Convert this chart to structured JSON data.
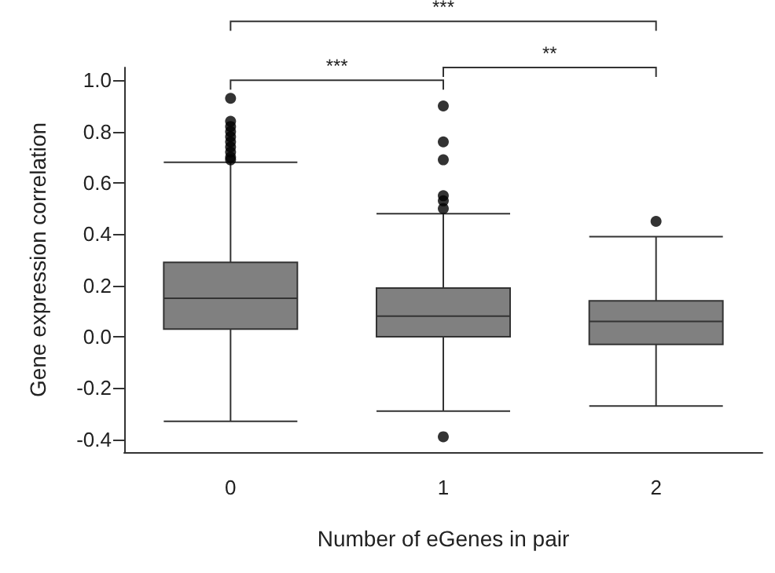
{
  "chart_data": {
    "type": "box",
    "xlabel": "Number of eGenes in pair",
    "ylabel": "Gene expression correlation",
    "categories": [
      "0",
      "1",
      "2"
    ],
    "boxes": [
      {
        "low": -0.33,
        "q1": 0.03,
        "median": 0.15,
        "q3": 0.29,
        "high": 0.68,
        "outliers": [
          0.93,
          0.84,
          0.82,
          0.8,
          0.78,
          0.76,
          0.74,
          0.72,
          0.7,
          0.69
        ]
      },
      {
        "low": -0.29,
        "q1": 0.0,
        "median": 0.08,
        "q3": 0.19,
        "high": 0.48,
        "outliers": [
          0.9,
          0.76,
          0.69,
          0.55,
          0.53,
          0.5,
          -0.39
        ]
      },
      {
        "low": -0.27,
        "q1": -0.03,
        "median": 0.06,
        "q3": 0.14,
        "high": 0.39,
        "outliers": [
          0.45
        ]
      }
    ],
    "color": "#808080",
    "ylim": [
      -0.45,
      1.05
    ],
    "yticks": [
      -0.4,
      -0.2,
      {
        "value": 0,
        "label": "0.0"
      },
      0.2,
      0.4,
      0.6,
      0.8,
      {
        "value": 1,
        "label": "1.0"
      }
    ],
    "grid": false,
    "annotations": [
      "***",
      "***",
      "**"
    ]
  }
}
